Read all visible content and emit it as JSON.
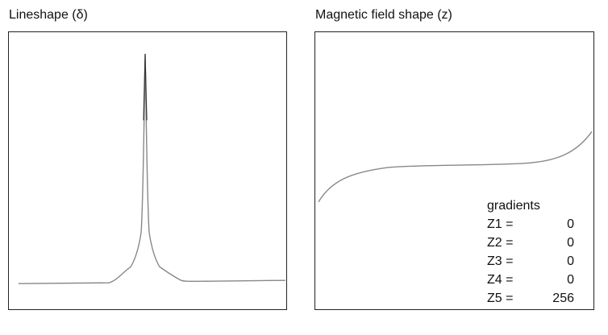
{
  "panels": {
    "lineshape": {
      "title": "Lineshape (δ)"
    },
    "field": {
      "title": "Magnetic field shape (z)"
    }
  },
  "gradients": {
    "heading": "gradients",
    "rows": [
      {
        "label": "Z1 =",
        "value": "0"
      },
      {
        "label": "Z2 =",
        "value": "0"
      },
      {
        "label": "Z3 =",
        "value": "0"
      },
      {
        "label": "Z4 =",
        "value": "0"
      },
      {
        "label": "Z5 =",
        "value": "256"
      }
    ]
  },
  "colors": {
    "curve": "#888888",
    "border": "#222222",
    "text": "#111111"
  }
}
